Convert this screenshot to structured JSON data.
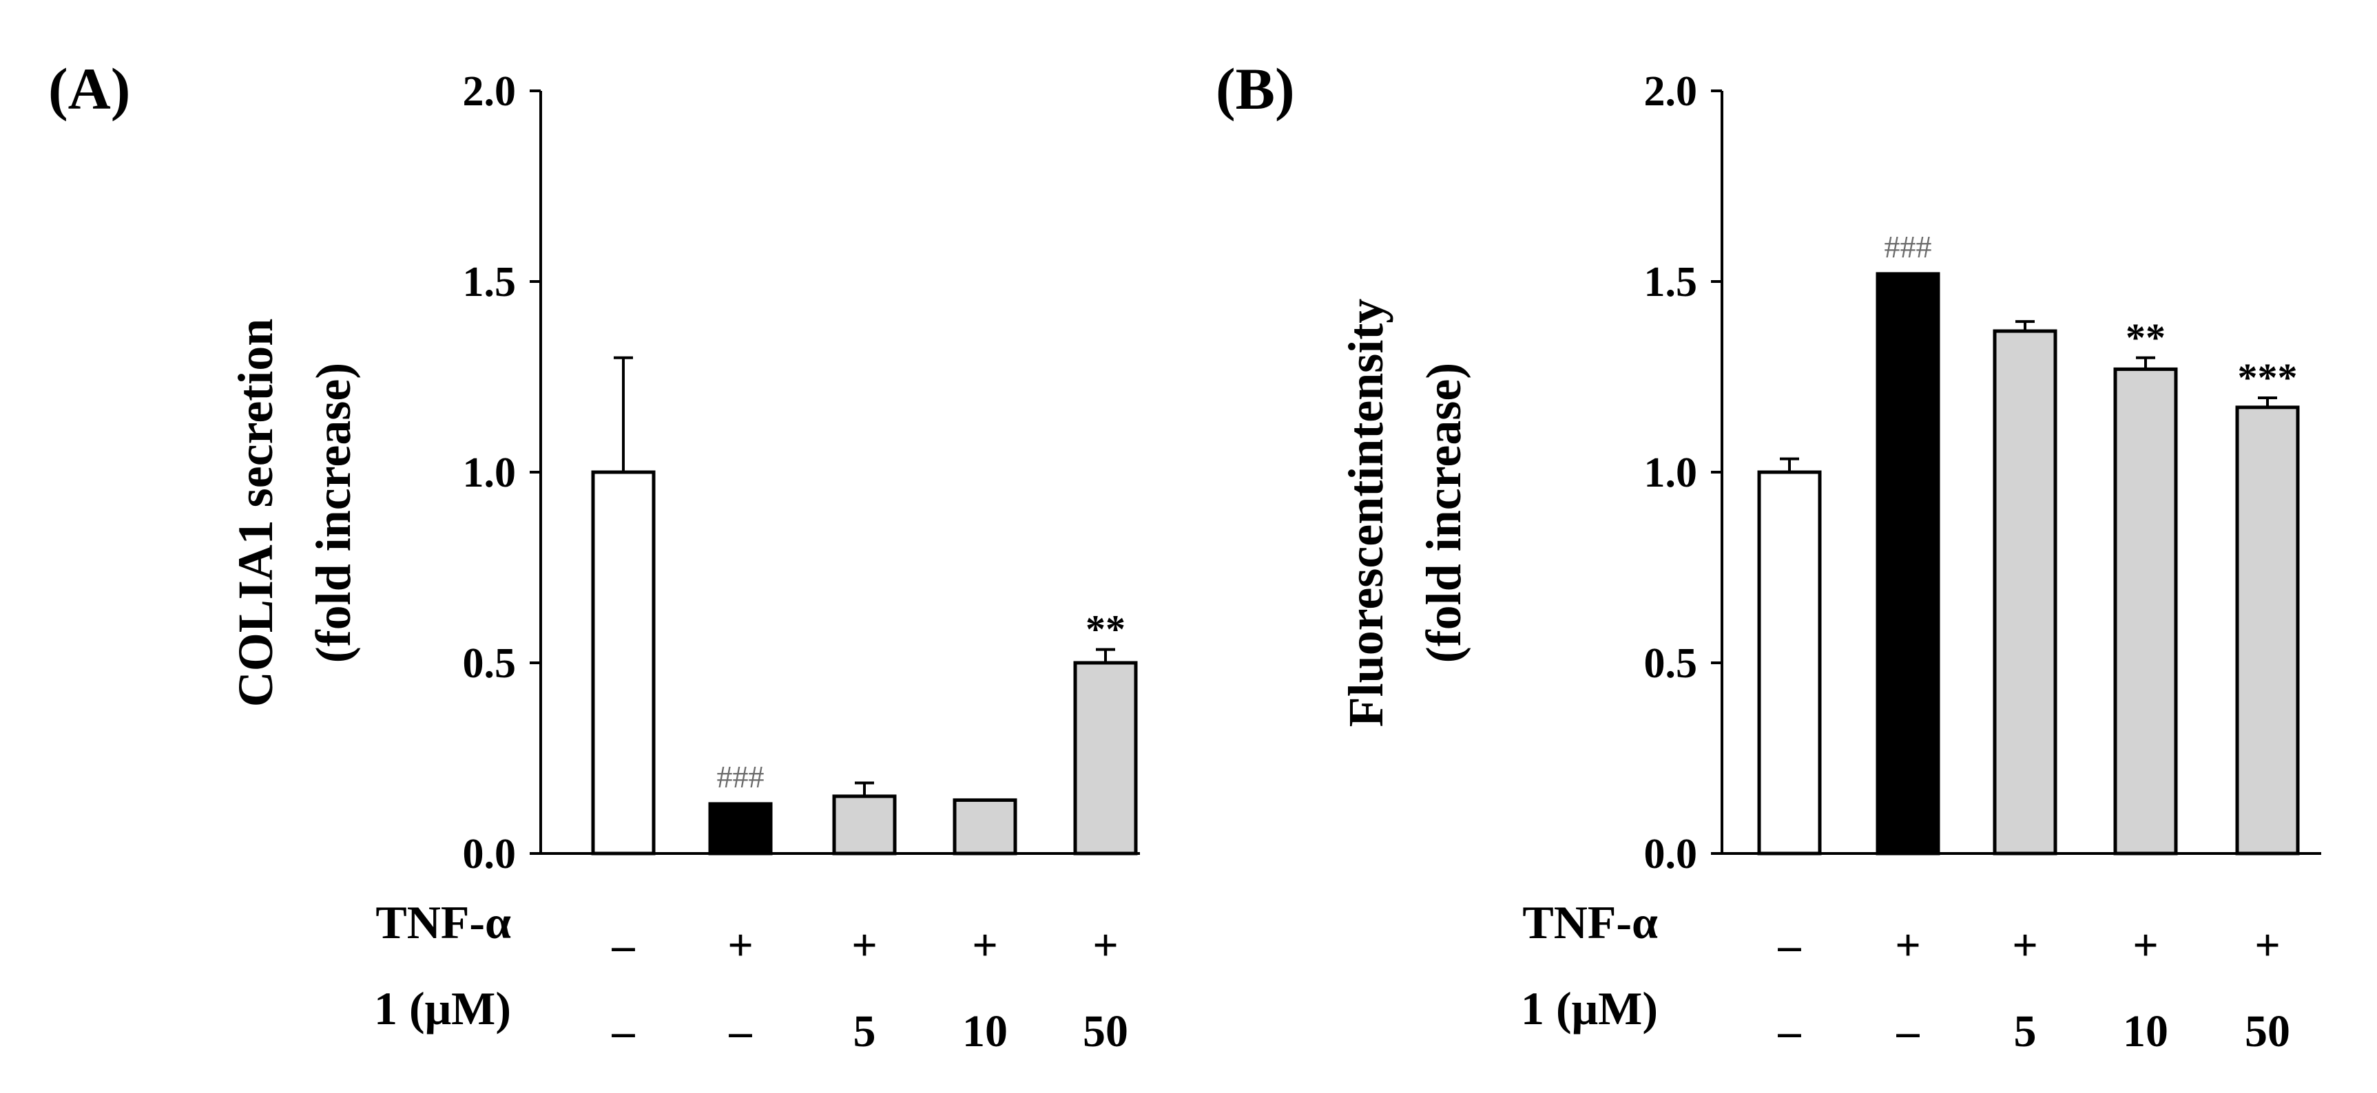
{
  "chart_data": [
    {
      "panel": "(A)",
      "type": "bar",
      "ylabel_line1": "COLIA1 secretion",
      "ylabel_line2": "(fold increase)",
      "ylim": [
        0,
        2.0
      ],
      "yticks": [
        "0.0",
        "0.5",
        "1.0",
        "1.5",
        "2.0"
      ],
      "row1_label": "TNF-α",
      "row2_label": "1 (μM)",
      "bars": [
        {
          "value": 1.0,
          "error": 0.3,
          "fill": "#ffffff",
          "tnf": "–",
          "dose": "–",
          "sig": "",
          "sig_type": ""
        },
        {
          "value": 0.13,
          "error": 0.0,
          "fill": "#000000",
          "tnf": "+",
          "dose": "–",
          "sig": "###",
          "sig_type": "hash"
        },
        {
          "value": 0.15,
          "error": 0.035,
          "fill": "#d3d3d3",
          "tnf": "+",
          "dose": "5",
          "sig": "",
          "sig_type": ""
        },
        {
          "value": 0.14,
          "error": 0.0,
          "fill": "#d3d3d3",
          "tnf": "+",
          "dose": "10",
          "sig": "",
          "sig_type": ""
        },
        {
          "value": 0.5,
          "error": 0.035,
          "fill": "#d3d3d3",
          "tnf": "+",
          "dose": "50",
          "sig": "**",
          "sig_type": "star"
        }
      ]
    },
    {
      "panel": "(B)",
      "type": "bar",
      "ylabel_line1": "Fluorescentintensity",
      "ylabel_line2": "(fold increase)",
      "ylim": [
        0,
        2.0
      ],
      "yticks": [
        "0.0",
        "0.5",
        "1.0",
        "1.5",
        "2.0"
      ],
      "row1_label": "TNF-α",
      "row2_label": "1 (μM)",
      "bars": [
        {
          "value": 1.0,
          "error": 0.035,
          "fill": "#ffffff",
          "tnf": "–",
          "dose": "–",
          "sig": "",
          "sig_type": ""
        },
        {
          "value": 1.52,
          "error": 0.0,
          "fill": "#000000",
          "tnf": "+",
          "dose": "–",
          "sig": "###",
          "sig_type": "hash"
        },
        {
          "value": 1.37,
          "error": 0.025,
          "fill": "#d3d3d3",
          "tnf": "+",
          "dose": "5",
          "sig": "",
          "sig_type": ""
        },
        {
          "value": 1.27,
          "error": 0.03,
          "fill": "#d3d3d3",
          "tnf": "+",
          "dose": "10",
          "sig": "**",
          "sig_type": "star"
        },
        {
          "value": 1.17,
          "error": 0.025,
          "fill": "#d3d3d3",
          "tnf": "+",
          "dose": "50",
          "sig": "***",
          "sig_type": "star"
        }
      ]
    }
  ]
}
